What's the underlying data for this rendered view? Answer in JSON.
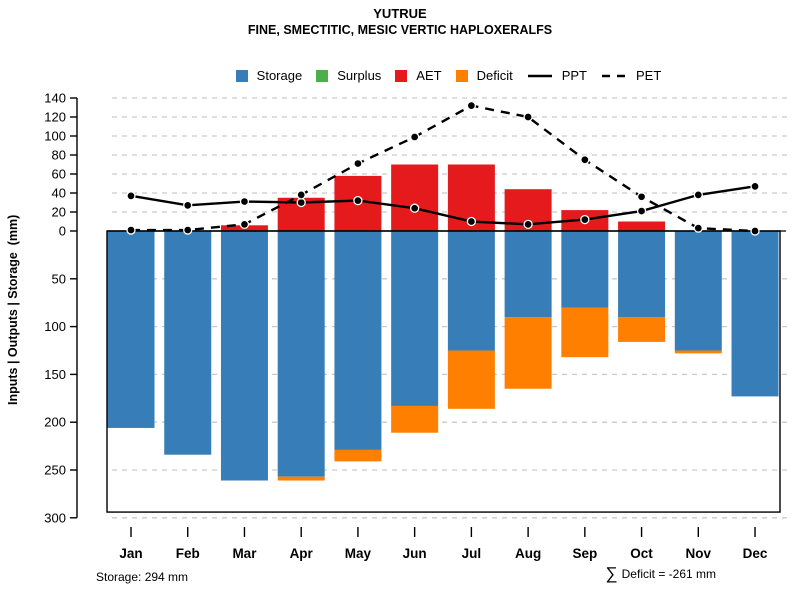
{
  "header": {
    "title": "YUTRUE",
    "subtitle": "FINE, SMECTITIC, MESIC VERTIC HAPLOXERALFS"
  },
  "legend": {
    "items": [
      {
        "label": "Storage",
        "swatch": "box",
        "color": "#377EB8"
      },
      {
        "label": "Surplus",
        "swatch": "box",
        "color": "#4DAF4A"
      },
      {
        "label": "AET",
        "swatch": "box",
        "color": "#E41A1C"
      },
      {
        "label": "Deficit",
        "swatch": "box",
        "color": "#FF7F00"
      },
      {
        "label": "PPT",
        "swatch": "solid-line",
        "color": "#000000"
      },
      {
        "label": "PET",
        "swatch": "dashed-line",
        "color": "#000000"
      }
    ]
  },
  "y_axis": {
    "label": "Inputs | Outputs | Storage  (mm)",
    "upper_ticks": [
      140,
      120,
      100,
      80,
      60,
      40,
      20,
      0
    ],
    "lower_ticks": [
      50,
      100,
      150,
      200,
      250,
      300
    ]
  },
  "footer": {
    "storage_note": "Storage: 294 mm",
    "sum_symbol": "∑",
    "sum_text": "Deficit = -261 mm"
  },
  "chart_data": {
    "type": "bar+line composite (monthly soil water balance)",
    "categories": [
      "Jan",
      "Feb",
      "Mar",
      "Apr",
      "May",
      "Jun",
      "Jul",
      "Aug",
      "Sep",
      "Oct",
      "Nov",
      "Dec"
    ],
    "series": [
      {
        "name": "Storage",
        "type": "bar",
        "direction": "down",
        "color": "#377EB8",
        "values": [
          206,
          234,
          261,
          257,
          229,
          183,
          125,
          90,
          80,
          90,
          125,
          173
        ]
      },
      {
        "name": "Surplus",
        "type": "bar",
        "direction": "up",
        "color": "#4DAF4A",
        "values": [
          0,
          0,
          0,
          0,
          0,
          0,
          0,
          0,
          0,
          0,
          0,
          0
        ]
      },
      {
        "name": "AET",
        "type": "bar",
        "direction": "up",
        "color": "#E41A1C",
        "values": [
          0,
          0,
          6,
          35,
          58,
          70,
          70,
          44,
          22,
          10,
          0,
          0
        ]
      },
      {
        "name": "Deficit",
        "type": "bar",
        "direction": "down-stacked-below-storage",
        "color": "#FF7F00",
        "values": [
          0,
          0,
          0,
          4,
          12,
          28,
          61,
          75,
          52,
          26,
          3,
          0
        ]
      },
      {
        "name": "PPT",
        "type": "line",
        "style": "solid",
        "color": "#000000",
        "values": [
          37,
          27,
          31,
          30,
          32,
          24,
          10,
          7,
          12,
          21,
          38,
          47
        ]
      },
      {
        "name": "PET",
        "type": "line",
        "style": "dashed",
        "color": "#000000",
        "values": [
          1,
          1,
          7,
          38,
          71,
          99,
          132,
          120,
          75,
          36,
          3,
          0
        ]
      }
    ],
    "upper_axis": {
      "range": [
        0,
        140
      ],
      "tick_step": 20,
      "units": "mm"
    },
    "lower_axis": {
      "range": [
        0,
        300
      ],
      "tick_step": 50,
      "reversed": true,
      "panel_bottom_value": 294,
      "units": "mm"
    },
    "grid": "dashed",
    "legend_position": "top-center",
    "annotations": [
      "Storage: 294 mm",
      "∑ Deficit = -261 mm"
    ]
  }
}
